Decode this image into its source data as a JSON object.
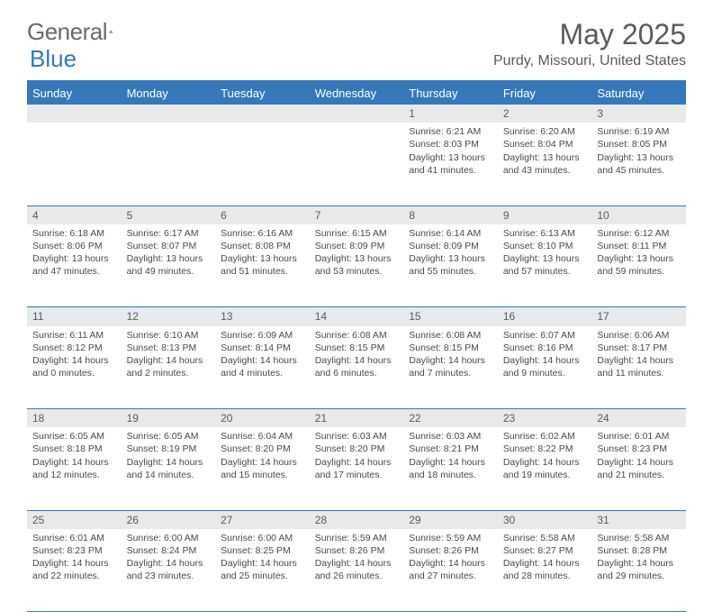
{
  "brand": {
    "text1": "General",
    "text2": "Blue"
  },
  "title": "May 2025",
  "location": "Purdy, Missouri, United States",
  "colors": {
    "accent": "#3678b9",
    "daynum_bg": "#e8e9ea",
    "text": "#4a4a4a"
  },
  "dayHeaders": [
    "Sunday",
    "Monday",
    "Tuesday",
    "Wednesday",
    "Thursday",
    "Friday",
    "Saturday"
  ],
  "weeks": [
    [
      null,
      null,
      null,
      null,
      {
        "n": "1",
        "sr": "6:21 AM",
        "ss": "8:03 PM",
        "dl": "13 hours and 41 minutes."
      },
      {
        "n": "2",
        "sr": "6:20 AM",
        "ss": "8:04 PM",
        "dl": "13 hours and 43 minutes."
      },
      {
        "n": "3",
        "sr": "6:19 AM",
        "ss": "8:05 PM",
        "dl": "13 hours and 45 minutes."
      }
    ],
    [
      {
        "n": "4",
        "sr": "6:18 AM",
        "ss": "8:06 PM",
        "dl": "13 hours and 47 minutes."
      },
      {
        "n": "5",
        "sr": "6:17 AM",
        "ss": "8:07 PM",
        "dl": "13 hours and 49 minutes."
      },
      {
        "n": "6",
        "sr": "6:16 AM",
        "ss": "8:08 PM",
        "dl": "13 hours and 51 minutes."
      },
      {
        "n": "7",
        "sr": "6:15 AM",
        "ss": "8:09 PM",
        "dl": "13 hours and 53 minutes."
      },
      {
        "n": "8",
        "sr": "6:14 AM",
        "ss": "8:09 PM",
        "dl": "13 hours and 55 minutes."
      },
      {
        "n": "9",
        "sr": "6:13 AM",
        "ss": "8:10 PM",
        "dl": "13 hours and 57 minutes."
      },
      {
        "n": "10",
        "sr": "6:12 AM",
        "ss": "8:11 PM",
        "dl": "13 hours and 59 minutes."
      }
    ],
    [
      {
        "n": "11",
        "sr": "6:11 AM",
        "ss": "8:12 PM",
        "dl": "14 hours and 0 minutes."
      },
      {
        "n": "12",
        "sr": "6:10 AM",
        "ss": "8:13 PM",
        "dl": "14 hours and 2 minutes."
      },
      {
        "n": "13",
        "sr": "6:09 AM",
        "ss": "8:14 PM",
        "dl": "14 hours and 4 minutes."
      },
      {
        "n": "14",
        "sr": "6:08 AM",
        "ss": "8:15 PM",
        "dl": "14 hours and 6 minutes."
      },
      {
        "n": "15",
        "sr": "6:08 AM",
        "ss": "8:15 PM",
        "dl": "14 hours and 7 minutes."
      },
      {
        "n": "16",
        "sr": "6:07 AM",
        "ss": "8:16 PM",
        "dl": "14 hours and 9 minutes."
      },
      {
        "n": "17",
        "sr": "6:06 AM",
        "ss": "8:17 PM",
        "dl": "14 hours and 11 minutes."
      }
    ],
    [
      {
        "n": "18",
        "sr": "6:05 AM",
        "ss": "8:18 PM",
        "dl": "14 hours and 12 minutes."
      },
      {
        "n": "19",
        "sr": "6:05 AM",
        "ss": "8:19 PM",
        "dl": "14 hours and 14 minutes."
      },
      {
        "n": "20",
        "sr": "6:04 AM",
        "ss": "8:20 PM",
        "dl": "14 hours and 15 minutes."
      },
      {
        "n": "21",
        "sr": "6:03 AM",
        "ss": "8:20 PM",
        "dl": "14 hours and 17 minutes."
      },
      {
        "n": "22",
        "sr": "6:03 AM",
        "ss": "8:21 PM",
        "dl": "14 hours and 18 minutes."
      },
      {
        "n": "23",
        "sr": "6:02 AM",
        "ss": "8:22 PM",
        "dl": "14 hours and 19 minutes."
      },
      {
        "n": "24",
        "sr": "6:01 AM",
        "ss": "8:23 PM",
        "dl": "14 hours and 21 minutes."
      }
    ],
    [
      {
        "n": "25",
        "sr": "6:01 AM",
        "ss": "8:23 PM",
        "dl": "14 hours and 22 minutes."
      },
      {
        "n": "26",
        "sr": "6:00 AM",
        "ss": "8:24 PM",
        "dl": "14 hours and 23 minutes."
      },
      {
        "n": "27",
        "sr": "6:00 AM",
        "ss": "8:25 PM",
        "dl": "14 hours and 25 minutes."
      },
      {
        "n": "28",
        "sr": "5:59 AM",
        "ss": "8:26 PM",
        "dl": "14 hours and 26 minutes."
      },
      {
        "n": "29",
        "sr": "5:59 AM",
        "ss": "8:26 PM",
        "dl": "14 hours and 27 minutes."
      },
      {
        "n": "30",
        "sr": "5:58 AM",
        "ss": "8:27 PM",
        "dl": "14 hours and 28 minutes."
      },
      {
        "n": "31",
        "sr": "5:58 AM",
        "ss": "8:28 PM",
        "dl": "14 hours and 29 minutes."
      }
    ]
  ],
  "labels": {
    "sunrise": "Sunrise: ",
    "sunset": "Sunset: ",
    "daylight": "Daylight: "
  }
}
